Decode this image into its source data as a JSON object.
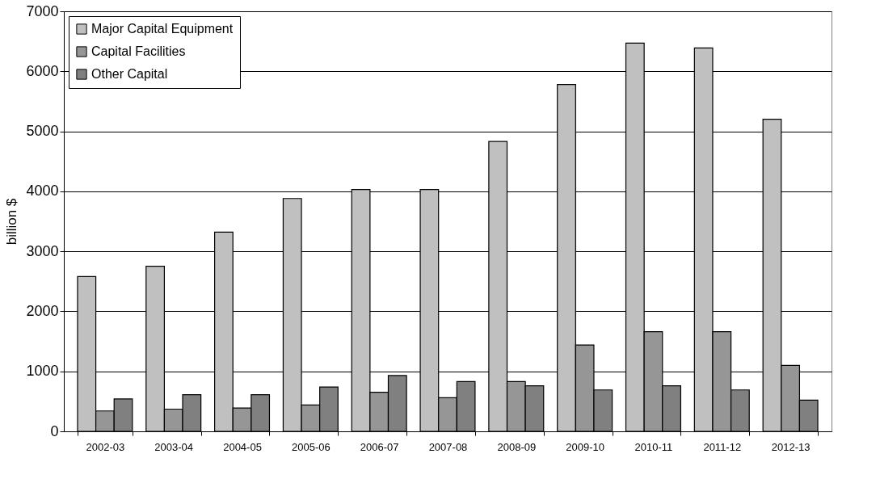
{
  "chart_data": {
    "type": "bar",
    "ylabel": "billion $",
    "categories": [
      "2002-03",
      "2003-04",
      "2004-05",
      "2005-06",
      "2006-07",
      "2007-08",
      "2008-09",
      "2009-10",
      "2010-11",
      "2011-12",
      "2012-13"
    ],
    "series": [
      {
        "name": "Major Capital Equipment",
        "color": "#c0c0c0",
        "values": [
          2580,
          2750,
          3320,
          3880,
          4030,
          4030,
          4830,
          5780,
          6470,
          6390,
          5200
        ]
      },
      {
        "name": "Capital Facilities",
        "color": "#969696",
        "values": [
          340,
          370,
          390,
          440,
          650,
          560,
          830,
          1440,
          1660,
          1660,
          1100
        ]
      },
      {
        "name": "Other Capital",
        "color": "#808080",
        "values": [
          540,
          610,
          610,
          740,
          930,
          830,
          760,
          690,
          760,
          690,
          520
        ]
      }
    ],
    "ylim": [
      0,
      7000
    ],
    "yticks": [
      0,
      1000,
      2000,
      3000,
      4000,
      5000,
      6000,
      7000
    ],
    "grid": "y",
    "legend": "top left"
  }
}
